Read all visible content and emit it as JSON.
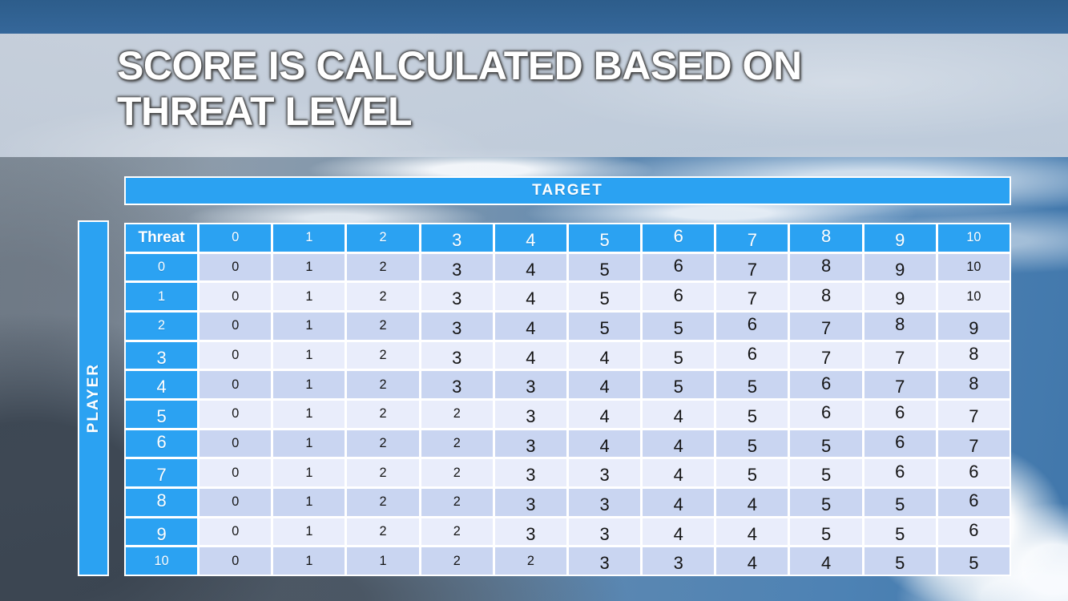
{
  "slide": {
    "title_lines": [
      "SCORE IS CALCULATED BASED ON",
      "THREAT LEVEL"
    ]
  },
  "table": {
    "target_label": "TARGET",
    "player_label": "PLAYER",
    "corner_label": "Threat",
    "column_headers": [
      "0",
      "1",
      "2",
      "3",
      "4",
      "5",
      "6",
      "7",
      "8",
      "9",
      "10"
    ],
    "row_headers": [
      "0",
      "1",
      "2",
      "3",
      "4",
      "5",
      "6",
      "7",
      "8",
      "9",
      "10"
    ],
    "rows": [
      [
        0,
        1,
        2,
        3,
        4,
        5,
        6,
        7,
        8,
        9,
        10
      ],
      [
        0,
        1,
        2,
        3,
        4,
        5,
        6,
        7,
        8,
        9,
        10
      ],
      [
        0,
        1,
        2,
        3,
        4,
        5,
        5,
        6,
        7,
        8,
        9
      ],
      [
        0,
        1,
        2,
        3,
        4,
        4,
        5,
        6,
        7,
        7,
        8
      ],
      [
        0,
        1,
        2,
        3,
        3,
        4,
        5,
        5,
        6,
        7,
        8
      ],
      [
        0,
        1,
        2,
        2,
        3,
        4,
        4,
        5,
        6,
        6,
        7
      ],
      [
        0,
        1,
        2,
        2,
        3,
        4,
        4,
        5,
        5,
        6,
        7
      ],
      [
        0,
        1,
        2,
        2,
        3,
        3,
        4,
        5,
        5,
        6,
        6
      ],
      [
        0,
        1,
        2,
        2,
        3,
        3,
        4,
        4,
        5,
        5,
        6
      ],
      [
        0,
        1,
        2,
        2,
        3,
        3,
        4,
        4,
        5,
        5,
        6
      ],
      [
        0,
        1,
        1,
        2,
        2,
        3,
        3,
        4,
        4,
        5,
        5
      ]
    ]
  },
  "colors": {
    "accent_blue": "#2ba2f2",
    "row_even": "#c9d5f1",
    "row_odd": "#e9edfb",
    "grid_white": "#ffffff",
    "top_strip": "#2d5d8b",
    "title_band": "#c9d3e0",
    "title_text": "#ffffff",
    "cell_text": "#141414"
  }
}
